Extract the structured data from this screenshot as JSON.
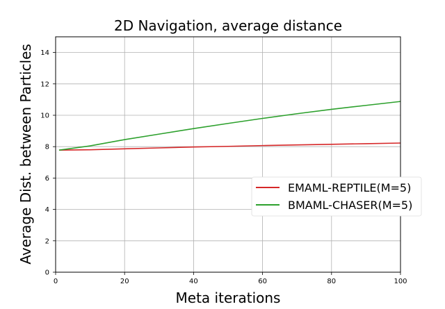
{
  "chart_data": {
    "type": "line",
    "title": "2D Navigation, average distance",
    "xlabel": "Meta iterations",
    "ylabel": "Average Dist. between Particles",
    "xlim": [
      0,
      100
    ],
    "ylim": [
      0,
      15
    ],
    "xticks": [
      0,
      20,
      40,
      60,
      80,
      100
    ],
    "yticks": [
      0,
      2,
      4,
      6,
      8,
      10,
      12,
      14
    ],
    "grid": true,
    "legend_position": "center-right",
    "series": [
      {
        "name": "EMAML-REPTILE(M=5)",
        "color": "#d62728",
        "x": [
          1,
          10,
          20,
          30,
          40,
          50,
          60,
          70,
          80,
          90,
          100
        ],
        "y": [
          7.78,
          7.8,
          7.86,
          7.92,
          7.98,
          8.02,
          8.07,
          8.11,
          8.15,
          8.19,
          8.23
        ]
      },
      {
        "name": "BMAML-CHASER(M=5)",
        "color": "#2ca02c",
        "x": [
          1,
          10,
          20,
          30,
          40,
          50,
          60,
          70,
          80,
          90,
          100
        ],
        "y": [
          7.78,
          8.05,
          8.45,
          8.8,
          9.15,
          9.48,
          9.8,
          10.1,
          10.38,
          10.63,
          10.88
        ]
      }
    ]
  }
}
